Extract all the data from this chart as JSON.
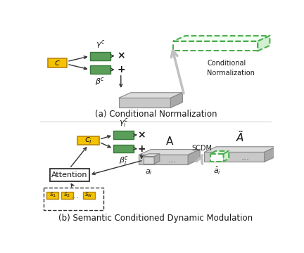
{
  "fig_width": 4.32,
  "fig_height": 3.6,
  "dpi": 100,
  "bg_color": "#ffffff",
  "yellow_color": "#F5C200",
  "yellow_edge": "#B8860B",
  "green_color": "#5A9E5A",
  "green_dark": "#3A7A3A",
  "gray_face": "#C8C8C8",
  "gray_top": "#DCDCDC",
  "gray_right": "#A8A8A8",
  "gray_edge": "#888888",
  "dashed_green": "#4CAF50",
  "arrow_color": "#333333",
  "text_color": "#1a1a1a",
  "title_a": "(a) Conditional Normalization",
  "title_b": "(b) Semantic Conditioned Dynamic Modulation",
  "label_cn": "Conditional\nNormalization",
  "label_scdm": "SCDM",
  "label_attention": "Attention"
}
